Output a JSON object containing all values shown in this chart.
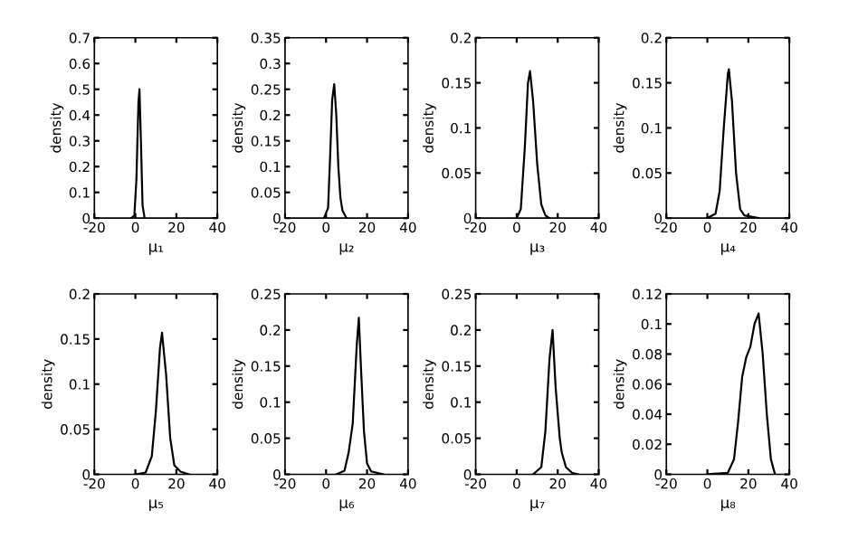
{
  "chart_data": [
    {
      "type": "line",
      "xlabel": "μ₁",
      "ylabel": "density",
      "x": [
        -2,
        -0.5,
        0.5,
        1.5,
        2,
        2.7,
        3.5,
        4.5
      ],
      "series": [
        {
          "color": "#000000",
          "values": [
            0,
            0.01,
            0.15,
            0.45,
            0.5,
            0.3,
            0.05,
            0
          ]
        }
      ],
      "xlim": [
        -20,
        40
      ],
      "xticks": [
        -20,
        0,
        20,
        40
      ],
      "ylim": [
        0,
        0.7
      ],
      "yticks": [
        0,
        0.1,
        0.2,
        0.3,
        0.4,
        0.5,
        0.6,
        0.7
      ],
      "grid": false,
      "legend": false
    },
    {
      "type": "line",
      "xlabel": "μ₂",
      "ylabel": "density",
      "x": [
        -1,
        1,
        2,
        3,
        4,
        5,
        6,
        7,
        8,
        10
      ],
      "series": [
        {
          "color": "#000000",
          "values": [
            0,
            0.02,
            0.12,
            0.23,
            0.26,
            0.2,
            0.1,
            0.04,
            0.015,
            0
          ]
        }
      ],
      "xlim": [
        -20,
        40
      ],
      "xticks": [
        -20,
        0,
        20,
        40
      ],
      "ylim": [
        0,
        0.35
      ],
      "yticks": [
        0,
        0.05,
        0.1,
        0.15,
        0.2,
        0.25,
        0.3,
        0.35
      ],
      "grid": false,
      "legend": false
    },
    {
      "type": "line",
      "xlabel": "μ₃",
      "ylabel": "density",
      "x": [
        0,
        2,
        4,
        5.5,
        6.5,
        8,
        10,
        12,
        14,
        16
      ],
      "series": [
        {
          "color": "#000000",
          "values": [
            0,
            0.01,
            0.08,
            0.15,
            0.163,
            0.13,
            0.06,
            0.015,
            0.003,
            0
          ]
        }
      ],
      "xlim": [
        -20,
        40
      ],
      "xticks": [
        -20,
        0,
        20,
        40
      ],
      "ylim": [
        0,
        0.2
      ],
      "yticks": [
        0,
        0.05,
        0.1,
        0.15,
        0.2
      ],
      "grid": false,
      "legend": false
    },
    {
      "type": "line",
      "xlabel": "μ₄",
      "ylabel": "density",
      "x": [
        0,
        4,
        6,
        8,
        10,
        10.5,
        12,
        14,
        16,
        18,
        25
      ],
      "series": [
        {
          "color": "#000000",
          "values": [
            0,
            0.005,
            0.03,
            0.1,
            0.16,
            0.165,
            0.13,
            0.05,
            0.01,
            0.003,
            0
          ]
        }
      ],
      "xlim": [
        -20,
        40
      ],
      "xticks": [
        -20,
        0,
        20,
        40
      ],
      "ylim": [
        0,
        0.2
      ],
      "yticks": [
        0,
        0.05,
        0.1,
        0.15,
        0.2
      ],
      "grid": false,
      "legend": false
    },
    {
      "type": "line",
      "xlabel": "μ₅",
      "ylabel": "density",
      "x": [
        0,
        5,
        8,
        10,
        12,
        13,
        15,
        17,
        19,
        22,
        26
      ],
      "series": [
        {
          "color": "#000000",
          "values": [
            0,
            0.002,
            0.02,
            0.07,
            0.14,
            0.157,
            0.11,
            0.04,
            0.01,
            0.003,
            0
          ]
        }
      ],
      "xlim": [
        -20,
        40
      ],
      "xticks": [
        -20,
        0,
        20,
        40
      ],
      "ylim": [
        0,
        0.2
      ],
      "yticks": [
        0,
        0.05,
        0.1,
        0.15,
        0.2
      ],
      "grid": false,
      "legend": false
    },
    {
      "type": "line",
      "xlabel": "μ₆",
      "ylabel": "density",
      "x": [
        5,
        9,
        11,
        13,
        15,
        16,
        17,
        18.5,
        20,
        22,
        28
      ],
      "series": [
        {
          "color": "#000000",
          "values": [
            0,
            0.005,
            0.03,
            0.07,
            0.18,
            0.217,
            0.15,
            0.06,
            0.015,
            0.004,
            0
          ]
        }
      ],
      "xlim": [
        -20,
        40
      ],
      "xticks": [
        -20,
        0,
        20,
        40
      ],
      "ylim": [
        0,
        0.25
      ],
      "yticks": [
        0,
        0.05,
        0.1,
        0.15,
        0.2,
        0.25
      ],
      "grid": false,
      "legend": false
    },
    {
      "type": "line",
      "xlabel": "μ₇",
      "ylabel": "density",
      "x": [
        8,
        12,
        14,
        16,
        17.5,
        19,
        21,
        22,
        24,
        27,
        30
      ],
      "series": [
        {
          "color": "#000000",
          "values": [
            0,
            0.01,
            0.06,
            0.16,
            0.2,
            0.12,
            0.05,
            0.03,
            0.01,
            0.002,
            0
          ]
        }
      ],
      "xlim": [
        -20,
        40
      ],
      "xticks": [
        -20,
        0,
        20,
        40
      ],
      "ylim": [
        0,
        0.25
      ],
      "yticks": [
        0,
        0.05,
        0.1,
        0.15,
        0.2,
        0.25
      ],
      "grid": false,
      "legend": false
    },
    {
      "type": "line",
      "xlabel": "μ₈",
      "ylabel": "density",
      "x": [
        0,
        10,
        13,
        15,
        17,
        19,
        21,
        23,
        25,
        27,
        29,
        31,
        33
      ],
      "series": [
        {
          "color": "#000000",
          "values": [
            0,
            0.001,
            0.01,
            0.035,
            0.065,
            0.078,
            0.085,
            0.1,
            0.107,
            0.08,
            0.04,
            0.01,
            0
          ]
        }
      ],
      "xlim": [
        -20,
        40
      ],
      "xticks": [
        -20,
        0,
        20,
        40
      ],
      "ylim": [
        0,
        0.12
      ],
      "yticks": [
        0,
        0.02,
        0.04,
        0.06,
        0.08,
        0.1,
        0.12
      ],
      "grid": false,
      "legend": false
    }
  ]
}
